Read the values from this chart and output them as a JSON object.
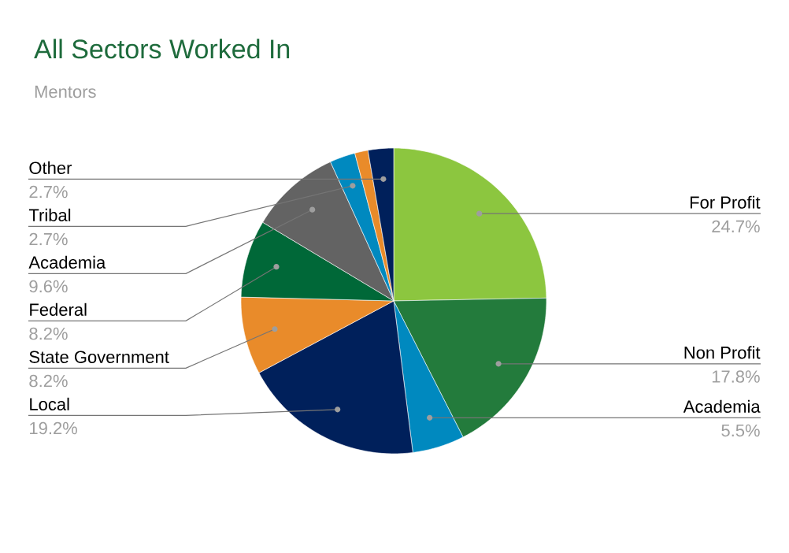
{
  "chart_data": {
    "type": "pie",
    "title": "All Sectors Worked In",
    "subtitle": "Mentors",
    "categories": [
      "For Profit",
      "Non Profit",
      "Academia",
      "Local",
      "State Government",
      "Federal",
      "Academia",
      "Tribal",
      null,
      "Other"
    ],
    "values": [
      24.7,
      17.8,
      5.5,
      19.2,
      8.2,
      8.2,
      9.6,
      2.7,
      1.4,
      2.7
    ],
    "value_labels": [
      "24.7%",
      "17.8%",
      "5.5%",
      "19.2%",
      "8.2%",
      "8.2%",
      "9.6%",
      "2.7%",
      null,
      "2.7%"
    ],
    "colors": [
      "#8cc63f",
      "#237b3c",
      "#0089bf",
      "#00205b",
      "#e98b2a",
      "#006838",
      "#636363",
      "#0089bf",
      "#e98b2a",
      "#00205b"
    ]
  }
}
